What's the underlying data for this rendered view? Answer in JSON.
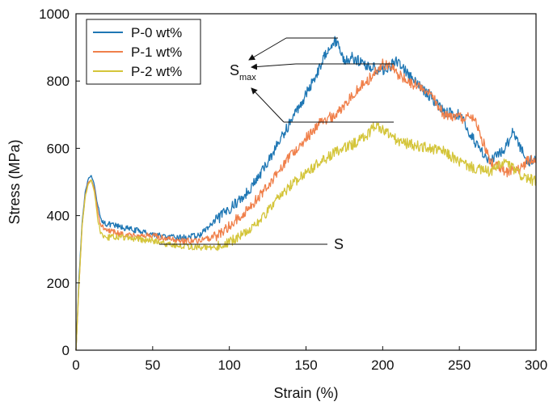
{
  "chart_data": {
    "type": "line",
    "title": "",
    "xlabel": "Strain (%)",
    "ylabel": "Stress (MPa)",
    "xlim": [
      0,
      300
    ],
    "ylim": [
      0,
      1000
    ],
    "xticks": [
      0,
      50,
      100,
      150,
      200,
      250,
      300
    ],
    "yticks": [
      0,
      200,
      400,
      600,
      800,
      1000
    ],
    "grid": false,
    "legend_position": "top-left",
    "series": [
      {
        "name": "P-0 wt%",
        "color": "#1f77b4",
        "x": [
          0,
          2,
          4,
          6,
          8,
          10,
          12,
          14,
          16,
          20,
          25,
          30,
          40,
          50,
          60,
          70,
          80,
          90,
          100,
          110,
          120,
          130,
          140,
          150,
          160,
          165,
          170,
          175,
          180,
          190,
          200,
          210,
          220,
          230,
          240,
          250,
          260,
          270,
          280,
          285,
          290,
          295,
          300
        ],
        "y": [
          0,
          220,
          380,
          470,
          510,
          520,
          490,
          430,
          390,
          375,
          370,
          365,
          355,
          345,
          335,
          335,
          340,
          380,
          420,
          460,
          520,
          600,
          680,
          760,
          850,
          905,
          920,
          860,
          870,
          845,
          830,
          860,
          800,
          760,
          710,
          700,
          620,
          560,
          600,
          655,
          600,
          560,
          570
        ]
      },
      {
        "name": "P-1 wt%",
        "color": "#f0804b",
        "x": [
          0,
          2,
          4,
          6,
          8,
          10,
          12,
          14,
          16,
          20,
          25,
          30,
          40,
          50,
          60,
          70,
          80,
          90,
          100,
          110,
          120,
          130,
          140,
          150,
          160,
          170,
          180,
          190,
          200,
          205,
          210,
          220,
          230,
          240,
          250,
          260,
          270,
          280,
          290,
          295,
          300
        ],
        "y": [
          0,
          200,
          370,
          460,
          500,
          505,
          480,
          420,
          375,
          355,
          350,
          345,
          340,
          340,
          330,
          325,
          325,
          335,
          370,
          410,
          460,
          520,
          580,
          630,
          680,
          700,
          760,
          800,
          850,
          840,
          820,
          790,
          770,
          700,
          690,
          690,
          560,
          530,
          540,
          570,
          555
        ]
      },
      {
        "name": "P-2 wt%",
        "color": "#d4c53a",
        "x": [
          0,
          2,
          4,
          6,
          8,
          10,
          12,
          14,
          16,
          20,
          25,
          30,
          40,
          50,
          60,
          70,
          80,
          90,
          100,
          110,
          120,
          130,
          140,
          150,
          160,
          170,
          180,
          190,
          195,
          200,
          205,
          210,
          220,
          230,
          240,
          250,
          260,
          270,
          280,
          290,
          300
        ],
        "y": [
          0,
          200,
          370,
          455,
          495,
          505,
          470,
          400,
          350,
          335,
          335,
          335,
          330,
          325,
          315,
          310,
          305,
          305,
          320,
          350,
          385,
          440,
          490,
          530,
          560,
          590,
          610,
          640,
          670,
          655,
          640,
          620,
          610,
          600,
          590,
          560,
          540,
          530,
          560,
          520,
          500
        ]
      }
    ],
    "annotations": {
      "smax_main": "S",
      "smax_sub": "max",
      "s_label": "S"
    }
  }
}
